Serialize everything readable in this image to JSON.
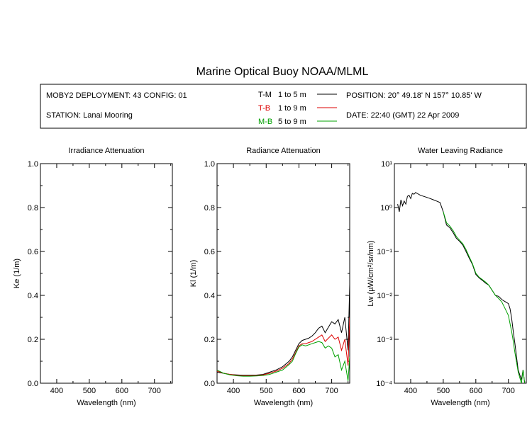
{
  "title": "Marine Optical Buoy NOAA/MLML",
  "info": {
    "deployment": "MOBY2 DEPLOYMENT: 43 CONFIG: 01",
    "station": "STATION: Lanai Mooring",
    "position": "POSITION: 20° 49.18' N   157° 10.85' W",
    "date": "DATE: 22:40 (GMT) 22 Apr 2009"
  },
  "legend": {
    "placement": "top-center",
    "entries": [
      {
        "name": "T-M",
        "range": "1 to 5  m",
        "color": "#000000"
      },
      {
        "name": "T-B",
        "range": "1 to 9  m",
        "color": "#dd0000"
      },
      {
        "name": "M-B",
        "range": "5 to 9  m",
        "color": "#00a000"
      }
    ]
  },
  "chart_data": [
    {
      "type": "line",
      "title": "Irradiance Attenuation",
      "xlabel": "Wavelength (nm)",
      "ylabel": "Ke  (1/m)",
      "xlim": [
        350,
        755
      ],
      "ylim": [
        0,
        1
      ],
      "xticks": [
        "400",
        "500",
        "600",
        "700"
      ],
      "yticks": [
        "0.0",
        "0.2",
        "0.4",
        "0.6",
        "0.8",
        "1.0"
      ],
      "series": []
    },
    {
      "type": "line",
      "title": "Radiance Attenuation",
      "xlabel": "Wavelength (nm)",
      "ylabel": "Kl  (1/m)",
      "xlim": [
        350,
        755
      ],
      "ylim": [
        0,
        1
      ],
      "xticks": [
        "400",
        "500",
        "600",
        "700"
      ],
      "yticks": [
        "0.0",
        "0.2",
        "0.4",
        "0.6",
        "0.8",
        "1.0"
      ],
      "series": [
        {
          "name": "T-M",
          "color": "#000000",
          "x": [
            350,
            370,
            390,
            410,
            430,
            450,
            470,
            490,
            510,
            530,
            550,
            570,
            580,
            590,
            600,
            610,
            620,
            630,
            640,
            650,
            660,
            670,
            680,
            690,
            700,
            710,
            720,
            730,
            740,
            750,
            755
          ],
          "y": [
            0.05,
            0.045,
            0.04,
            0.038,
            0.036,
            0.036,
            0.037,
            0.04,
            0.05,
            0.06,
            0.075,
            0.1,
            0.12,
            0.15,
            0.18,
            0.195,
            0.2,
            0.205,
            0.215,
            0.23,
            0.25,
            0.26,
            0.23,
            0.255,
            0.28,
            0.27,
            0.29,
            0.23,
            0.3,
            0.15,
            0.45
          ]
        },
        {
          "name": "T-B",
          "color": "#dd0000",
          "x": [
            350,
            370,
            390,
            410,
            430,
            450,
            470,
            490,
            510,
            530,
            550,
            570,
            580,
            590,
            600,
            610,
            620,
            630,
            640,
            650,
            660,
            670,
            680,
            690,
            700,
            710,
            720,
            730,
            740,
            750,
            755
          ],
          "y": [
            0.055,
            0.045,
            0.04,
            0.036,
            0.034,
            0.034,
            0.035,
            0.038,
            0.045,
            0.055,
            0.068,
            0.09,
            0.11,
            0.14,
            0.17,
            0.18,
            0.18,
            0.185,
            0.19,
            0.2,
            0.21,
            0.22,
            0.19,
            0.205,
            0.22,
            0.2,
            0.21,
            0.15,
            0.2,
            0.08,
            0.3
          ]
        },
        {
          "name": "M-B",
          "color": "#00a000",
          "x": [
            350,
            370,
            390,
            410,
            430,
            450,
            470,
            490,
            510,
            530,
            550,
            570,
            580,
            590,
            600,
            610,
            620,
            630,
            640,
            650,
            660,
            670,
            680,
            690,
            700,
            710,
            720,
            730,
            740,
            750,
            755
          ],
          "y": [
            0.06,
            0.045,
            0.038,
            0.034,
            0.032,
            0.032,
            0.033,
            0.035,
            0.04,
            0.05,
            0.06,
            0.085,
            0.1,
            0.135,
            0.165,
            0.175,
            0.17,
            0.175,
            0.18,
            0.185,
            0.19,
            0.185,
            0.16,
            0.17,
            0.16,
            0.12,
            0.13,
            0.06,
            0.1,
            0.01,
            0.12
          ]
        }
      ]
    },
    {
      "type": "line",
      "title": "Water Leaving Radiance",
      "xlabel": "Wavelength (nm)",
      "ylabel": "Lw  (µW/cm²/sr/nm)",
      "xlim": [
        350,
        755
      ],
      "ylim": [
        0.0001,
        10
      ],
      "yscale": "log",
      "xticks": [
        "400",
        "500",
        "600",
        "700"
      ],
      "yticks": [
        "10⁻⁴",
        "10⁻³",
        "10⁻²",
        "10⁻¹",
        "10⁰",
        "10¹"
      ],
      "series": [
        {
          "name": "Lw",
          "color": "#000000",
          "x": [
            360,
            365,
            370,
            375,
            380,
            385,
            390,
            395,
            400,
            405,
            410,
            415,
            420,
            430,
            440,
            450,
            460,
            470,
            480,
            490,
            500,
            510,
            520,
            530,
            540,
            550,
            560,
            570,
            580,
            590,
            600,
            610,
            620,
            630,
            640,
            650,
            660,
            670,
            680,
            690,
            700,
            705,
            710,
            715,
            720,
            725,
            730,
            740,
            745,
            750
          ],
          "y": [
            1.2,
            0.8,
            1.5,
            1.1,
            1.4,
            1.2,
            1.8,
            1.9,
            1.6,
            2.1,
            2.0,
            2.2,
            2.1,
            1.9,
            1.8,
            1.7,
            1.6,
            1.5,
            1.4,
            1.3,
            0.8,
            0.4,
            0.35,
            0.27,
            0.2,
            0.17,
            0.14,
            0.1,
            0.07,
            0.05,
            0.03,
            0.025,
            0.022,
            0.019,
            0.017,
            0.013,
            0.01,
            0.0095,
            0.008,
            0.0072,
            0.0065,
            0.005,
            0.003,
            0.0015,
            0.0008,
            0.0004,
            0.0002,
            0.00012,
            0.0002,
            0.0001
          ]
        },
        {
          "name": "Lw",
          "color": "#00a000",
          "x": [
            500,
            510,
            520,
            530,
            540,
            550,
            560,
            570,
            580,
            590,
            600,
            610,
            620,
            630,
            640,
            650,
            660,
            670,
            680,
            690,
            700,
            710,
            715,
            720,
            725,
            730,
            740,
            745,
            750
          ],
          "y": [
            0.8,
            0.45,
            0.38,
            0.3,
            0.22,
            0.18,
            0.15,
            0.11,
            0.075,
            0.052,
            0.032,
            0.026,
            0.023,
            0.02,
            0.017,
            0.013,
            0.01,
            0.0085,
            0.007,
            0.005,
            0.0035,
            0.0015,
            0.0009,
            0.0005,
            0.0003,
            0.00018,
            0.0001,
            0.0002,
            0.0001
          ]
        }
      ]
    }
  ]
}
